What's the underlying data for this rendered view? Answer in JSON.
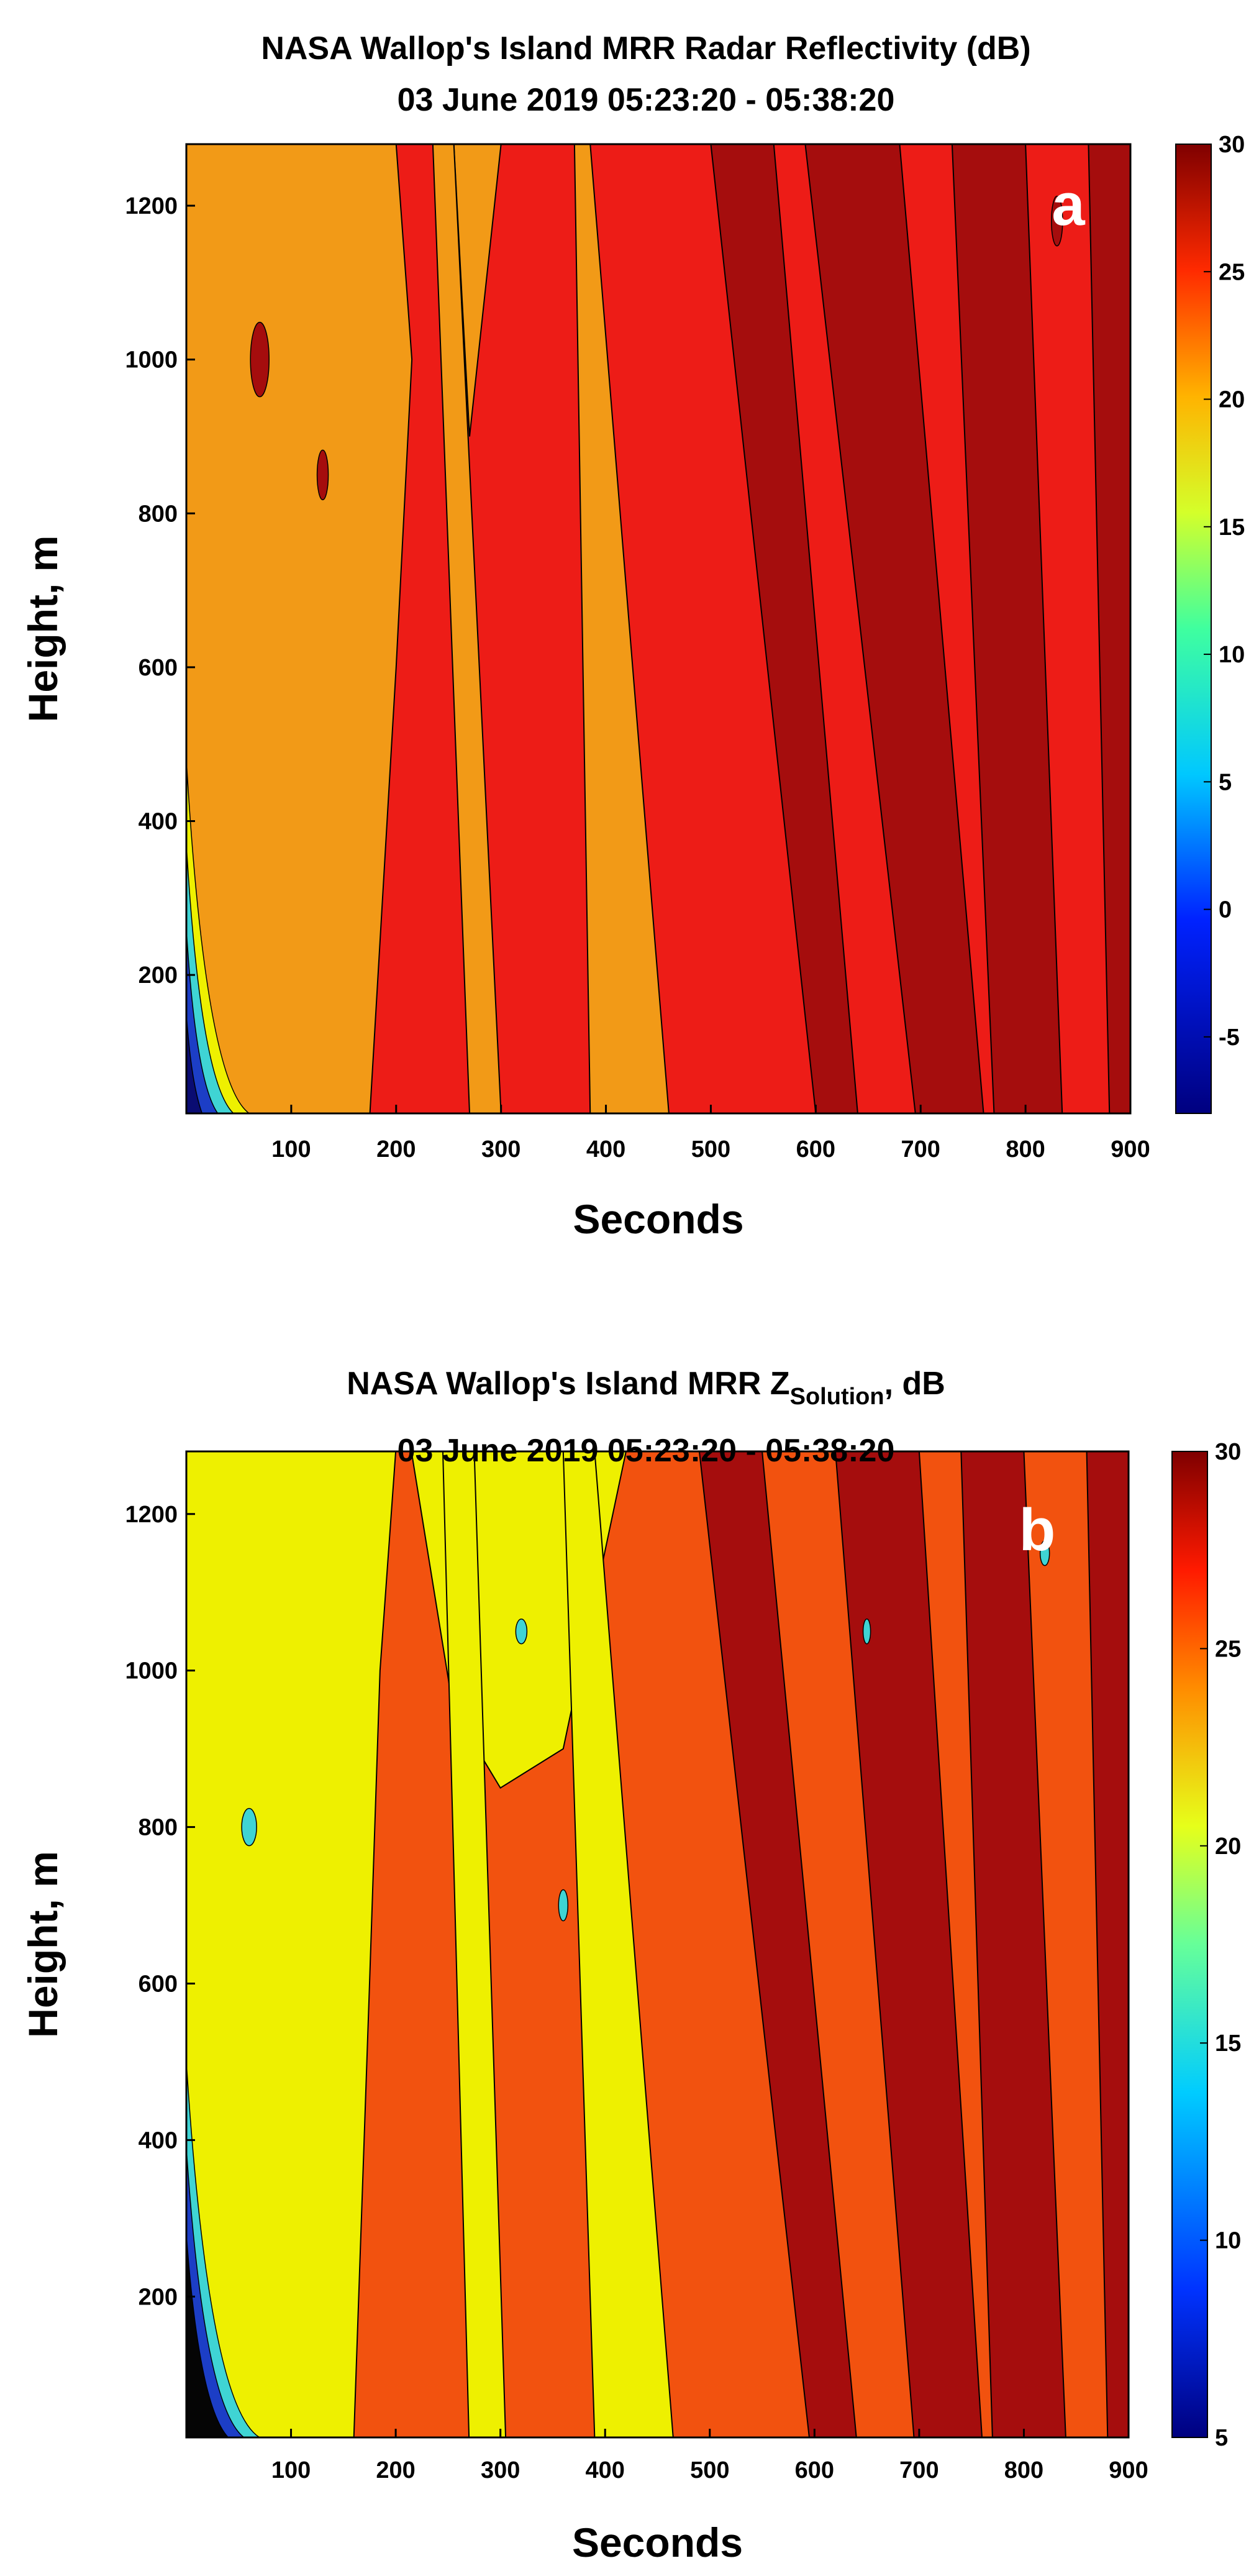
{
  "chart_data": [
    {
      "type": "heatmap",
      "panel": "a",
      "title": "NASA Wallop's Island MRR Radar Reflectivity (dB)",
      "subtitle": "03 June 2019 05:23:20 - 05:38:20",
      "xlabel": "Seconds",
      "ylabel": "Height, m",
      "xlim": [
        0,
        900
      ],
      "ylim": [
        20,
        1280
      ],
      "xticks": [
        100,
        200,
        300,
        400,
        500,
        600,
        700,
        800,
        900
      ],
      "yticks": [
        200,
        400,
        600,
        800,
        1000,
        1200
      ],
      "colorbar": {
        "min": -8,
        "max": 30,
        "ticks": [
          30,
          25,
          20,
          15,
          10,
          5,
          0,
          -5
        ]
      },
      "panel_label": "a",
      "level_colors": {
        "orange": "#f29a17",
        "red": "#ed1c17",
        "darkred": "#a50d0d",
        "yellow": "#eef000",
        "cyan": "#3fd4d4",
        "blue": "#1c3ec6",
        "navy": "#0a0c72"
      },
      "bands": [
        {
          "level": "darkred",
          "x_bottom": [
            600,
            640
          ],
          "x_top": [
            500,
            560
          ]
        },
        {
          "level": "darkred",
          "x_bottom": [
            695,
            760
          ],
          "x_top": [
            590,
            680
          ]
        },
        {
          "level": "darkred",
          "x_bottom": [
            770,
            835
          ],
          "x_top": [
            730,
            800
          ]
        },
        {
          "level": "darkred",
          "x_bottom": [
            880,
            900
          ],
          "x_top": [
            860,
            900
          ]
        },
        {
          "level": "orange",
          "x_bottom": [
            385,
            460
          ],
          "x_top": [
            370,
            385
          ]
        },
        {
          "level": "orange",
          "x_bottom": [
            270,
            300
          ],
          "x_top": [
            235,
            255
          ]
        }
      ]
    },
    {
      "type": "heatmap",
      "panel": "b",
      "title": "NASA Wallop's Island MRR Z",
      "title_subscript": "Solution",
      "title_suffix": ", dB",
      "subtitle": "03 June 2019 05:23:20 - 05:38:20",
      "xlabel": "Seconds",
      "ylabel": "Height, m",
      "xlim": [
        0,
        900
      ],
      "ylim": [
        20,
        1280
      ],
      "xticks": [
        100,
        200,
        300,
        400,
        500,
        600,
        700,
        800,
        900
      ],
      "yticks": [
        200,
        400,
        600,
        800,
        1000,
        1200
      ],
      "colorbar": {
        "min": 5,
        "max": 30,
        "ticks": [
          30,
          25,
          20,
          15,
          10,
          5
        ]
      },
      "panel_label": "b",
      "level_colors": {
        "yellow": "#eef000",
        "orange": "#f2520f",
        "darkred": "#a50d0d",
        "cyan": "#3fd4d4",
        "blue": "#1c3ec6",
        "black": "#050505"
      },
      "bands": [
        {
          "level": "darkred",
          "x_bottom": [
            595,
            640
          ],
          "x_top": [
            490,
            550
          ]
        },
        {
          "level": "darkred",
          "x_bottom": [
            695,
            760
          ],
          "x_top": [
            620,
            700
          ]
        },
        {
          "level": "darkred",
          "x_bottom": [
            770,
            840
          ],
          "x_top": [
            740,
            800
          ]
        },
        {
          "level": "darkred",
          "x_bottom": [
            880,
            900
          ],
          "x_top": [
            860,
            900
          ]
        },
        {
          "level": "yellow",
          "x_bottom": [
            390,
            465
          ],
          "x_top": [
            360,
            390
          ]
        },
        {
          "level": "yellow",
          "x_bottom": [
            270,
            305
          ],
          "x_top": [
            245,
            275
          ]
        }
      ]
    }
  ]
}
